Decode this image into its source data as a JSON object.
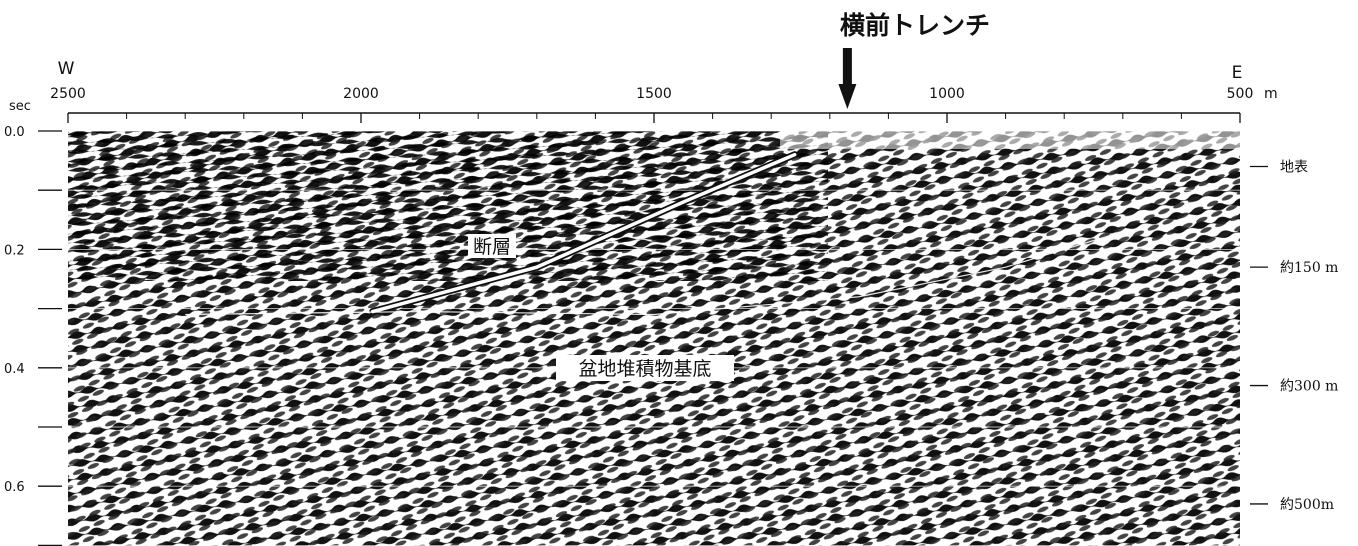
{
  "title": "横前トレンチ",
  "distance_axis": {
    "west_label": "W",
    "east_label": "E",
    "unit": "m",
    "ticks": [
      {
        "value": 2500,
        "label": "2500"
      },
      {
        "value": 2000,
        "label": "2000"
      },
      {
        "value": 1500,
        "label": "1500"
      },
      {
        "value": 1000,
        "label": "1000"
      },
      {
        "value": 500,
        "label": "500"
      }
    ],
    "range": [
      2500,
      500
    ],
    "minor_step": 100
  },
  "time_axis": {
    "unit": "sec",
    "ticks": [
      {
        "value": 0.0,
        "label": "0.0"
      },
      {
        "value": 0.2,
        "label": "0.2"
      },
      {
        "value": 0.4,
        "label": "0.4"
      },
      {
        "value": 0.6,
        "label": "0.6"
      }
    ],
    "minor_step": 0.1,
    "range": [
      0.0,
      0.7
    ]
  },
  "depth_labels": [
    {
      "time": 0.06,
      "label": "地表"
    },
    {
      "time": 0.23,
      "label": "約150 m"
    },
    {
      "time": 0.43,
      "label": "約300 m"
    },
    {
      "time": 0.63,
      "label": "約500m"
    }
  ],
  "trench_marker": {
    "distance": 1170
  },
  "annotations": {
    "fault_label": "断層",
    "basin_base_label": "盆地堆積物基底"
  },
  "fault_line": [
    {
      "distance": 1980,
      "time": 0.305
    },
    {
      "distance": 1700,
      "time": 0.23
    },
    {
      "distance": 1450,
      "time": 0.12
    },
    {
      "distance": 1260,
      "time": 0.04
    }
  ],
  "basin_base_line": [
    {
      "distance": 2300,
      "time": 0.31
    },
    {
      "distance": 1900,
      "time": 0.305
    },
    {
      "distance": 1500,
      "time": 0.31
    },
    {
      "distance": 1150,
      "time": 0.28
    },
    {
      "distance": 900,
      "time": 0.23
    },
    {
      "distance": 700,
      "time": 0.17
    }
  ],
  "colors": {
    "ink": "#111111",
    "paper": "#ffffff",
    "fault": "#ffffff"
  }
}
